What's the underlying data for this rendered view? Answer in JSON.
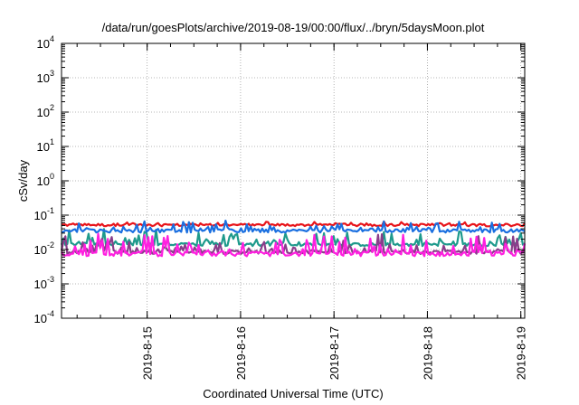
{
  "chart_data": {
    "type": "line",
    "title": "/data/run/goesPlots/archive/2019-08-19/00:00/flux/../bryn/5daysMoon.plot",
    "xlabel": "Coordinated Universal Time (UTC)",
    "ylabel": "cSv/day",
    "y_scale": "log",
    "ylim": [
      0.0001,
      10000
    ],
    "y_ticks": [
      {
        "value": 0.0001,
        "base": "10",
        "exp": "-4"
      },
      {
        "value": 0.001,
        "base": "10",
        "exp": "-3"
      },
      {
        "value": 0.01,
        "base": "10",
        "exp": "-2"
      },
      {
        "value": 0.1,
        "base": "10",
        "exp": "-1"
      },
      {
        "value": 1,
        "base": "10",
        "exp": "0"
      },
      {
        "value": 10,
        "base": "10",
        "exp": "1"
      },
      {
        "value": 100,
        "base": "10",
        "exp": "2"
      },
      {
        "value": 1000,
        "base": "10",
        "exp": "3"
      },
      {
        "value": 10000,
        "base": "10",
        "exp": "4"
      }
    ],
    "xlim": [
      "2019-08-14 02:00",
      "2019-08-19 01:00"
    ],
    "x_ticks": [
      "2019-8-15",
      "2019-8-16",
      "2019-8-17",
      "2019-8-18",
      "2019-8-19"
    ],
    "grid": true,
    "legend": "none",
    "series": [
      {
        "color": "#e8141a",
        "base": 0.052,
        "spread": 0.18,
        "spike": 0.08
      },
      {
        "color": "#1e9a8c",
        "base": 0.014,
        "spread": 0.2,
        "spike": 0.55
      },
      {
        "color": "#1a6fe0",
        "base": 0.035,
        "spread": 0.22,
        "spike": 0.3
      },
      {
        "color": "#8a3d8a",
        "base": 0.0085,
        "spread": 0.25,
        "spike": 0.75
      },
      {
        "color": "#ff1fe0",
        "base": 0.0075,
        "spread": 0.3,
        "spike": 0.85
      }
    ]
  }
}
